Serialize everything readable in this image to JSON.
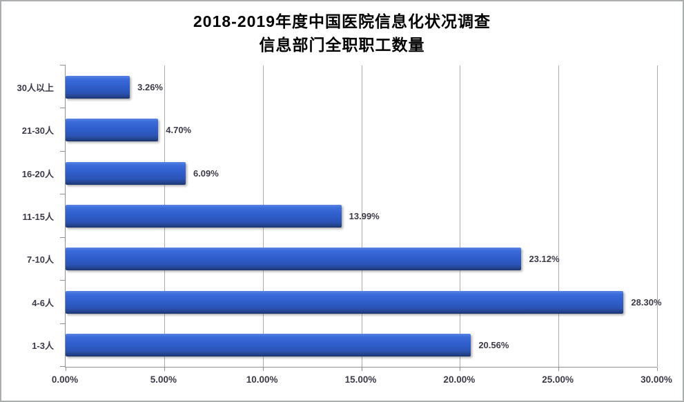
{
  "chart_data": {
    "type": "bar",
    "orientation": "horizontal",
    "title_line1": "2018-2019年度中国医院信息化状况调查",
    "title_line2": "信息部门全职职工数量",
    "categories": [
      "30人以上",
      "21-30人",
      "16-20人",
      "11-15人",
      "7-10人",
      "4-6人",
      "1-3人"
    ],
    "values": [
      3.26,
      4.7,
      6.09,
      13.99,
      23.12,
      28.3,
      20.56
    ],
    "data_labels": [
      "3.26%",
      "4.70%",
      "6.09%",
      "13.99%",
      "23.12%",
      "28.30%",
      "20.56%"
    ],
    "x_ticks": [
      "0.00%",
      "5.00%",
      "10.00%",
      "15.00%",
      "20.00%",
      "25.00%",
      "30.00%"
    ],
    "xlim": [
      0,
      30
    ],
    "grid": "vertical-on",
    "legend": "none",
    "bar_color_top": "#5a84e4",
    "bar_color_bottom": "#1a336e",
    "axis_color": "#8f9191",
    "gridline_color": "#a8abab",
    "label_color": "#3a3a48",
    "title_color": "#000000"
  }
}
